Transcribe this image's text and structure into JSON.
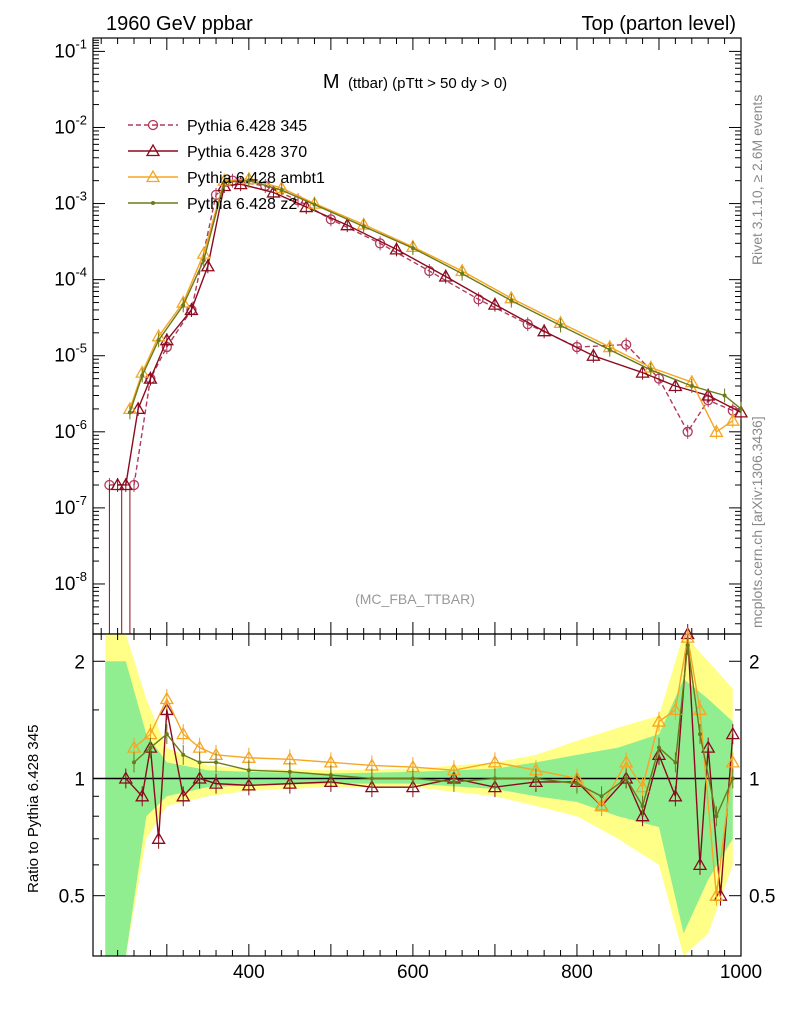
{
  "header": {
    "left": "1960 GeV ppbar",
    "right": "Top (parton level)"
  },
  "side_labels": {
    "rivet": "Rivet 3.1.10, ≥ 2.6M events",
    "mcplots": "mcplots.cern.ch [arXiv:1306.3436]"
  },
  "chart_data": [
    {
      "type": "line",
      "title_main": "M",
      "title_rest": "(ttbar) (pTtt > 50 dy > 0)",
      "watermark": "(MC_FBA_TTBAR)",
      "xlabel": "",
      "ylabel": "",
      "xlim": [
        210,
        1000
      ],
      "ylim": [
        2.2e-09,
        0.15
      ],
      "yscale": "log",
      "grid": false,
      "legend_position": "top-left",
      "y_tick_labels": [
        "10^-1",
        "10^-2",
        "10^-3",
        "10^-4",
        "10^-5",
        "10^-6",
        "10^-7",
        "10^-8"
      ],
      "series": [
        {
          "name": "Pythia 6.428 345",
          "color": "#b03a5a",
          "marker": "circle",
          "dashed": true,
          "x": [
            230,
            260,
            280,
            300,
            330,
            360,
            380,
            420,
            460,
            500,
            560,
            620,
            680,
            740,
            800,
            860,
            900,
            935,
            960,
            990
          ],
          "y": [
            2e-07,
            2e-07,
            5e-06,
            1.3e-05,
            4e-05,
            0.0013,
            0.002,
            0.0017,
            0.0011,
            0.00062,
            0.0003,
            0.00013,
            5.5e-05,
            2.6e-05,
            1.3e-05,
            1.4e-05,
            5e-06,
            1e-06,
            2.6e-06,
            1.9e-06
          ]
        },
        {
          "name": "Pythia 6.428 370",
          "color": "#8b0a1e",
          "marker": "triangle",
          "dashed": false,
          "x": [
            240,
            250,
            265,
            280,
            300,
            330,
            350,
            370,
            390,
            430,
            470,
            520,
            580,
            640,
            700,
            760,
            820,
            880,
            920,
            960,
            1000
          ],
          "y": [
            2e-07,
            2e-07,
            2e-06,
            5e-06,
            1.6e-05,
            4e-05,
            0.00015,
            0.0017,
            0.0018,
            0.0014,
            0.0009,
            0.00052,
            0.00025,
            0.00011,
            4.7e-05,
            2.1e-05,
            1e-05,
            6e-06,
            4e-06,
            3e-06,
            1.8e-06
          ]
        },
        {
          "name": "Pythia 6.428 ambt1",
          "color": "#f5a623",
          "marker": "triangle",
          "dashed": false,
          "x": [
            255,
            270,
            290,
            320,
            345,
            370,
            400,
            440,
            480,
            540,
            600,
            660,
            720,
            780,
            840,
            890,
            940,
            970,
            990
          ],
          "y": [
            2e-06,
            6e-06,
            1.8e-05,
            5e-05,
            0.00022,
            0.002,
            0.0021,
            0.0016,
            0.001,
            0.00053,
            0.00027,
            0.00013,
            5.7e-05,
            2.7e-05,
            1.3e-05,
            7e-06,
            4.5e-06,
            1e-06,
            1.4e-06
          ]
        },
        {
          "name": "Pythia 6.428 z2",
          "color": "#6b7a1a",
          "marker": "dot",
          "dashed": false,
          "x": [
            255,
            270,
            290,
            320,
            345,
            370,
            400,
            440,
            480,
            540,
            600,
            660,
            720,
            780,
            840,
            890,
            940,
            980,
            1000
          ],
          "y": [
            1.8e-06,
            5.5e-06,
            1.6e-05,
            4.6e-05,
            0.00018,
            0.0019,
            0.002,
            0.0015,
            0.00097,
            0.0005,
            0.00026,
            0.00012,
            5.3e-05,
            2.5e-05,
            1.2e-05,
            6.5e-06,
            4e-06,
            3e-06,
            2e-06
          ]
        }
      ]
    },
    {
      "type": "line",
      "ylabel": "Ratio to Pythia 6.428 345",
      "xlim": [
        210,
        1000
      ],
      "ylim": [
        0.35,
        2.35
      ],
      "x_tick_labels": [
        "400",
        "600",
        "800",
        "1000"
      ],
      "y_tick_labels": [
        "0.5",
        "1",
        "2"
      ],
      "reference_line": 1,
      "bands": [
        {
          "name": "yellow-band",
          "color": "#ffff88",
          "x": [
            225,
            250,
            275,
            300,
            350,
            400,
            500,
            600,
            700,
            750,
            800,
            850,
            900,
            930,
            960,
            990
          ],
          "lo": [
            0.35,
            0.35,
            0.7,
            0.85,
            0.9,
            0.93,
            0.95,
            0.95,
            0.9,
            0.85,
            0.8,
            0.7,
            0.6,
            0.35,
            0.4,
            0.6
          ],
          "hi": [
            2.35,
            2.35,
            1.6,
            1.2,
            1.08,
            1.06,
            1.05,
            1.06,
            1.1,
            1.15,
            1.25,
            1.35,
            1.45,
            2.35,
            2.0,
            1.7
          ]
        },
        {
          "name": "green-band",
          "color": "#90ee90",
          "x": [
            225,
            250,
            275,
            300,
            350,
            400,
            500,
            600,
            700,
            750,
            800,
            850,
            900,
            930,
            960,
            990
          ],
          "lo": [
            0.35,
            0.35,
            0.8,
            0.9,
            0.95,
            0.96,
            0.97,
            0.97,
            0.94,
            0.9,
            0.87,
            0.8,
            0.75,
            0.4,
            0.55,
            0.7
          ],
          "hi": [
            2.0,
            2.0,
            1.3,
            1.1,
            1.05,
            1.04,
            1.03,
            1.04,
            1.06,
            1.1,
            1.15,
            1.2,
            1.3,
            1.8,
            1.6,
            1.4
          ]
        }
      ],
      "series": [
        {
          "name": "Pythia 6.428 370",
          "color": "#8b0a1e",
          "marker": "triangle",
          "x": [
            250,
            270,
            280,
            290,
            300,
            320,
            340,
            360,
            400,
            450,
            500,
            550,
            600,
            650,
            700,
            750,
            800,
            830,
            860,
            880,
            900,
            920,
            935,
            950,
            960,
            975,
            990
          ],
          "y": [
            1.0,
            0.9,
            1.2,
            0.7,
            1.5,
            0.9,
            1.0,
            0.97,
            0.96,
            0.97,
            0.98,
            0.95,
            0.95,
            1.0,
            0.95,
            0.98,
            0.98,
            0.85,
            1.0,
            0.8,
            1.15,
            0.9,
            2.4,
            0.6,
            1.2,
            0.5,
            1.3
          ]
        },
        {
          "name": "Pythia 6.428 ambt1",
          "color": "#f5a623",
          "marker": "triangle",
          "x": [
            260,
            280,
            300,
            320,
            340,
            360,
            400,
            450,
            500,
            550,
            600,
            650,
            700,
            750,
            800,
            830,
            860,
            880,
            900,
            920,
            935,
            950,
            970,
            990
          ],
          "y": [
            1.2,
            1.3,
            1.6,
            1.3,
            1.2,
            1.15,
            1.13,
            1.12,
            1.1,
            1.08,
            1.07,
            1.05,
            1.1,
            1.05,
            1.0,
            0.85,
            1.1,
            0.95,
            1.4,
            1.5,
            2.3,
            1.5,
            0.5,
            1.1
          ]
        },
        {
          "name": "Pythia 6.428 z2",
          "color": "#6b7a1a",
          "marker": "dot",
          "x": [
            260,
            280,
            300,
            320,
            340,
            360,
            400,
            450,
            500,
            550,
            600,
            650,
            700,
            750,
            800,
            830,
            860,
            880,
            900,
            920,
            935,
            950,
            970,
            990
          ],
          "y": [
            1.1,
            1.2,
            1.3,
            1.15,
            1.1,
            1.1,
            1.05,
            1.04,
            1.02,
            1.0,
            1.0,
            0.98,
            1.0,
            1.0,
            0.97,
            0.9,
            1.0,
            0.85,
            1.2,
            1.1,
            2.2,
            1.3,
            0.8,
            1.0
          ]
        }
      ]
    }
  ]
}
